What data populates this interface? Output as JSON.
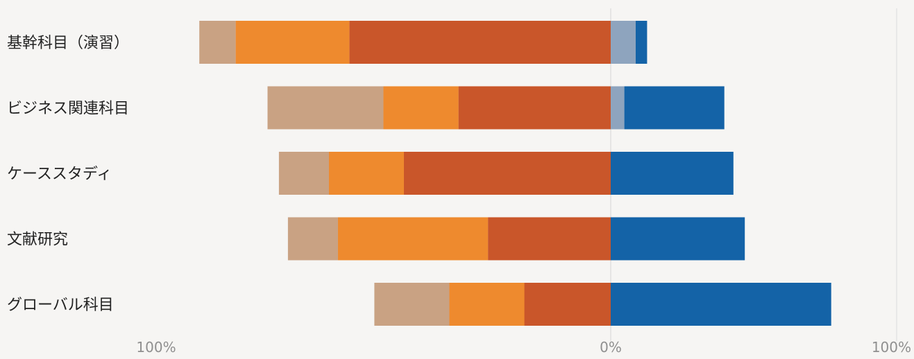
{
  "chart_data": {
    "type": "bar",
    "orientation": "horizontal",
    "stacked": "diverging",
    "categories": [
      "基幹科目（演習）",
      "ビジネス関連科目",
      "ケーススタディ",
      "文献研究",
      "グローバル科目"
    ],
    "series": [
      {
        "side": "left",
        "color": "#c9562a",
        "values": [
          57.5,
          33.5,
          45.5,
          27.0,
          19.0
        ]
      },
      {
        "side": "left",
        "color": "#ee8a2e",
        "values": [
          25.0,
          16.5,
          16.5,
          33.0,
          16.5
        ]
      },
      {
        "side": "left",
        "color": "#c9a283",
        "values": [
          8.0,
          25.5,
          11.0,
          11.0,
          16.5
        ]
      },
      {
        "side": "right",
        "color": "#8ea4be",
        "values": [
          5.5,
          3.0,
          0,
          0,
          0
        ]
      },
      {
        "side": "right",
        "color": "#1463a7",
        "values": [
          2.5,
          22.0,
          27.0,
          29.5,
          48.5
        ]
      }
    ],
    "xlim": [
      -100,
      100
    ],
    "x_ticks": [
      {
        "value": -100,
        "label": "100%"
      },
      {
        "value": 0,
        "label": "0%"
      },
      {
        "value": 100,
        "label": "100%"
      }
    ],
    "title": "",
    "xlabel": "",
    "ylabel": "",
    "legend": "none",
    "grid": false
  }
}
